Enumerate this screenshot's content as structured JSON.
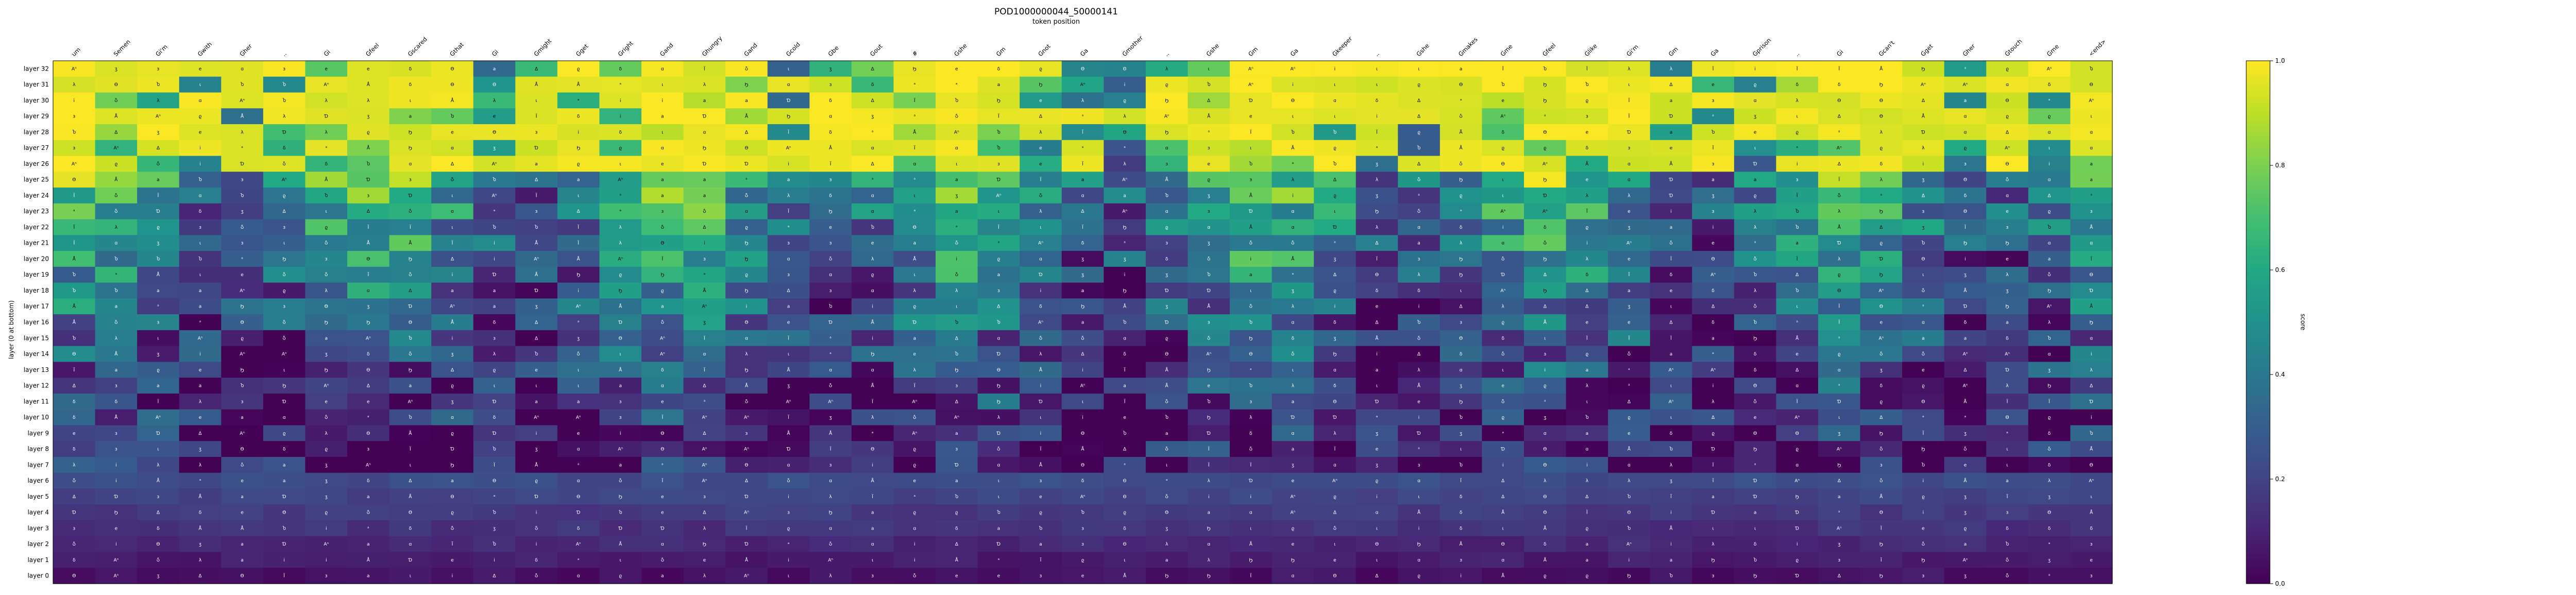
{
  "chart_data": {
    "type": "heatmap",
    "title": "POD1000000044_50000141",
    "subtitle": "token position",
    "ylabel": "layer (0 at bottom)",
    "colorbar_label": "score",
    "colormap": "viridis",
    "zlim": [
      0,
      1
    ],
    "colorbar_ticks": [
      "0.0",
      "0.2",
      "0.4",
      "0.6",
      "0.8",
      "1.0"
    ],
    "columns": [
      "um",
      "Semen",
      "Gi'm",
      "Gwith",
      "Gher",
      "..",
      "Gi",
      "Gfeel",
      "Gscared",
      "Gthat",
      "Gi",
      "Gmight",
      "Gget",
      "Gright",
      "Gand",
      "Ghungry",
      "Gand",
      "Gcold",
      "Gbe",
      "Gout",
      "#",
      "Gshe",
      "Gm",
      "Gnot",
      "Ga",
      "Gmother",
      "..",
      "Gshe",
      "Gm",
      "Ga",
      "Gkeeper",
      "..",
      "Gshe",
      "Gmakes",
      "Gme",
      "Gfeel",
      "Glike",
      "Gi'm",
      "Gm",
      "Ga",
      "Gprison",
      "..",
      "Gi",
      "Gcan't",
      "Gget",
      "Gher",
      "Gtouch",
      "Gme",
      "<end>"
    ],
    "rows": [
      "layer 32",
      "layer 31",
      "layer 30",
      "layer 29",
      "layer 28",
      "layer 27",
      "layer 26",
      "layer 25",
      "layer 24",
      "layer 23",
      "layer 22",
      "layer 21",
      "layer 20",
      "layer 19",
      "layer 18",
      "layer 17",
      "layer 16",
      "layer 15",
      "layer 14",
      "layer 13",
      "layer 12",
      "layer 11",
      "layer 10",
      "layer 9",
      "layer 8",
      "layer 7",
      "layer 6",
      "layer 5",
      "layer 4",
      "layer 3",
      "layer 2",
      "layer 1",
      "layer 0"
    ],
    "cell_tokens": [
      "a",
      "e",
      "i",
      "δ",
      "Δ",
      "ι",
      "λ",
      "Å",
      "Aⁿ",
      "ᵃ",
      "Ѳ",
      "Ⴆ",
      "Ϊ",
      "Ϧ",
      "ʒ",
      "ϱ",
      "Ɗ",
      "Ⴢ",
      "ɑ",
      "ɜ"
    ]
  }
}
